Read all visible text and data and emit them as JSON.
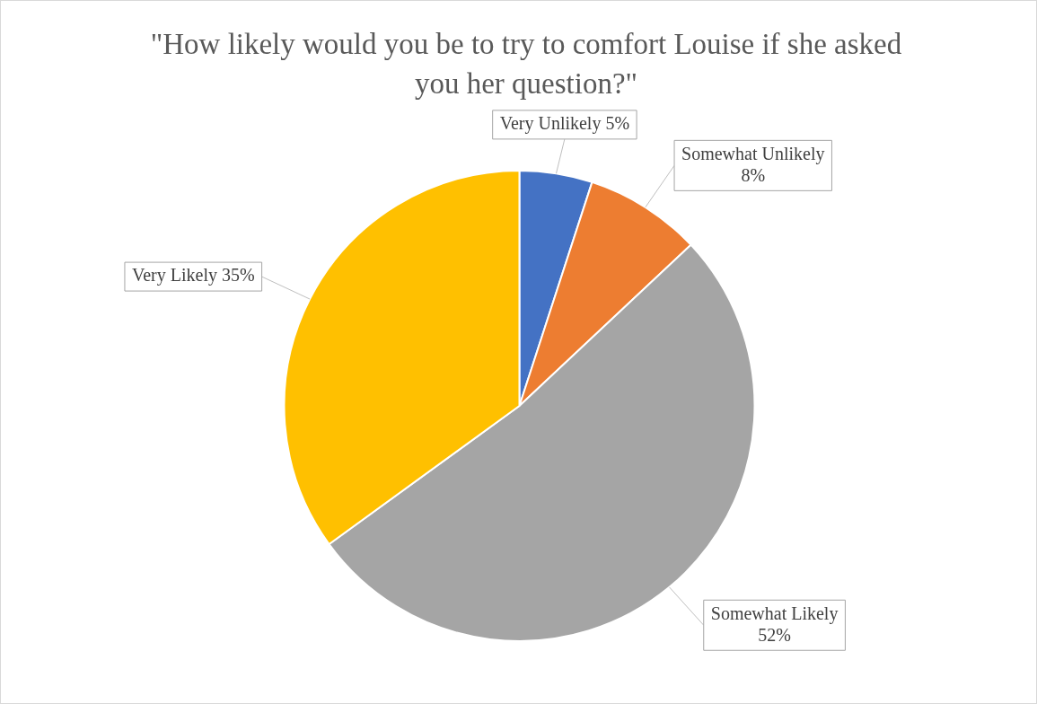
{
  "chart_data": {
    "type": "pie",
    "title": "\"How likely would you be to try to comfort Louise if she asked you her question?\"",
    "categories": [
      "Very Unlikely",
      "Somewhat Unlikely",
      "Somewhat Likely",
      "Very Likely"
    ],
    "values": [
      5,
      8,
      52,
      35
    ],
    "colors": [
      "#4472c4",
      "#ed7d31",
      "#a5a5a5",
      "#ffc000"
    ],
    "value_labels": [
      "5%",
      "8%",
      "52%",
      "35%"
    ],
    "legend": false
  }
}
